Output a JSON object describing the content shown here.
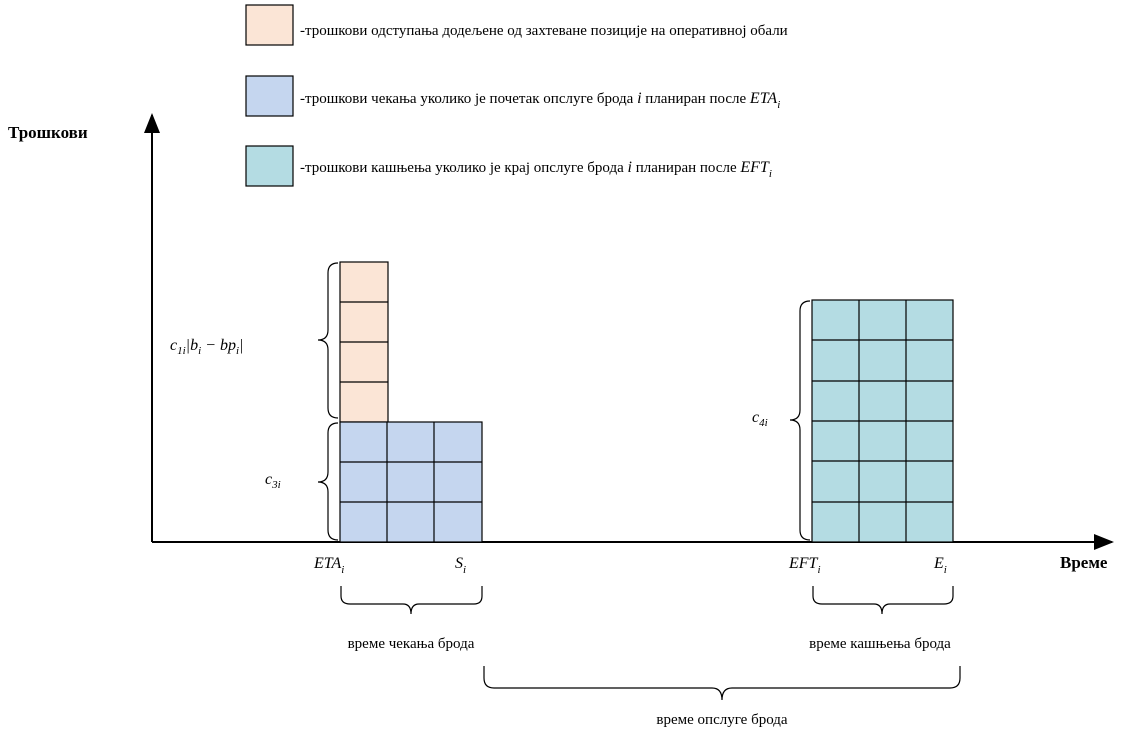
{
  "legend": [
    {
      "text": "-трошкови одступања додељене од захтеване позиције на оперативној обали"
    },
    {
      "text": "-трошкови чекања уколико је почетак опслуге брода",
      "var": "i",
      "text2": "планиран после",
      "math": "ETA",
      "sub": "i"
    },
    {
      "text": "-трошкови кашњења уколико је крај опслуге брода",
      "var": "i",
      "text2": "планиран после",
      "math": "EFT",
      "sub": "i"
    }
  ],
  "axes": {
    "y_label": "Трошкови",
    "x_label": "Време"
  },
  "cost_labels": [
    {
      "parts": [
        {
          "text": "c",
          "sub": "1i"
        },
        {
          "text": "|b",
          "sub": "i"
        },
        {
          "text": " − bp",
          "sub": "i"
        },
        {
          "text": "|"
        }
      ]
    },
    {
      "parts": [
        {
          "text": "c",
          "sub": "3i"
        }
      ]
    },
    {
      "parts": [
        {
          "text": "c",
          "sub": "4i"
        }
      ]
    }
  ],
  "time_labels": [
    {
      "text": "ETA",
      "sub": "i"
    },
    {
      "text": "S",
      "sub": "i"
    },
    {
      "text": "EFT",
      "sub": "i"
    },
    {
      "text": "E",
      "sub": "i"
    }
  ],
  "intervals": [
    "време чекања брода",
    "време кашњења брода",
    "време опслуге брода"
  ]
}
